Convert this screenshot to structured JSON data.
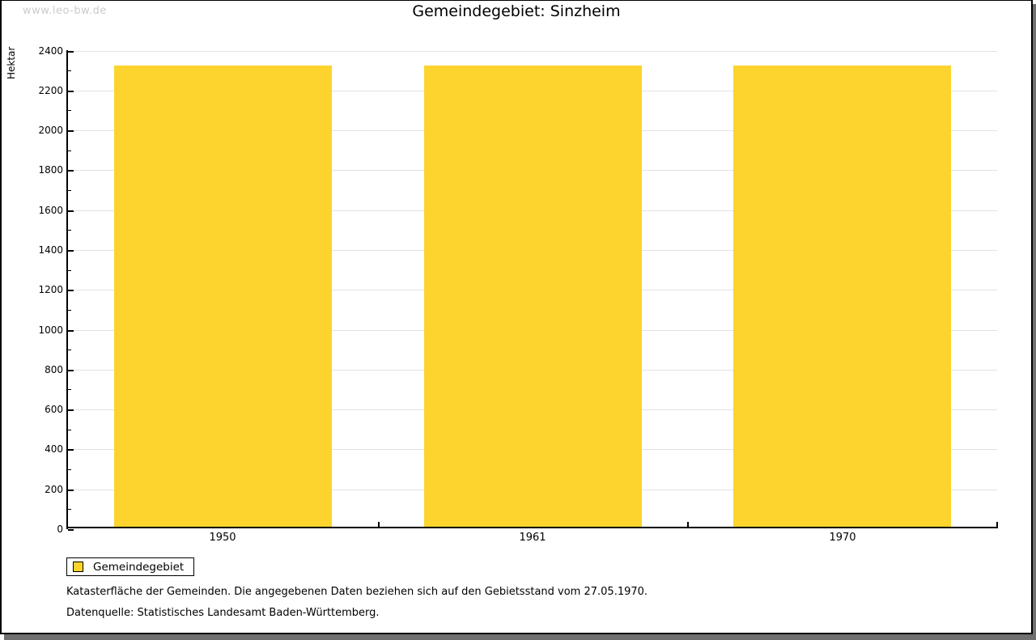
{
  "watermark": "www.leo-bw.de",
  "title": "Gemeindegebiet: Sinzheim",
  "chart_data": {
    "type": "bar",
    "title": "Gemeindegebiet: Sinzheim",
    "categories": [
      "1950",
      "1961",
      "1970"
    ],
    "series": [
      {
        "name": "Gemeindegebiet",
        "values": [
          2325,
          2325,
          2325
        ]
      }
    ],
    "xlabel": "",
    "ylabel": "Hektar",
    "ylim": [
      0,
      2400
    ],
    "ytick_step": 200,
    "yminor_step": 100,
    "grid": true,
    "legend_position": "bottom-left",
    "bar_color": "#fcd42d",
    "gridline_color": "#e2e2e2",
    "axis_color": "#000000"
  },
  "legend": {
    "items": [
      {
        "label": "Gemeindegebiet",
        "color": "#fcd42d"
      }
    ]
  },
  "footer": {
    "line1": "Katasterfläche der Gemeinden. Die angegebenen Daten beziehen sich auf den Gebietsstand vom 27.05.1970.",
    "line2": "Datenquelle: Statistisches Landesamt Baden-Württemberg."
  },
  "colors": {
    "background": "#ffffff",
    "frame_border": "#000000",
    "frame_shadow": "#707070",
    "watermark": "#cbcbcb"
  }
}
